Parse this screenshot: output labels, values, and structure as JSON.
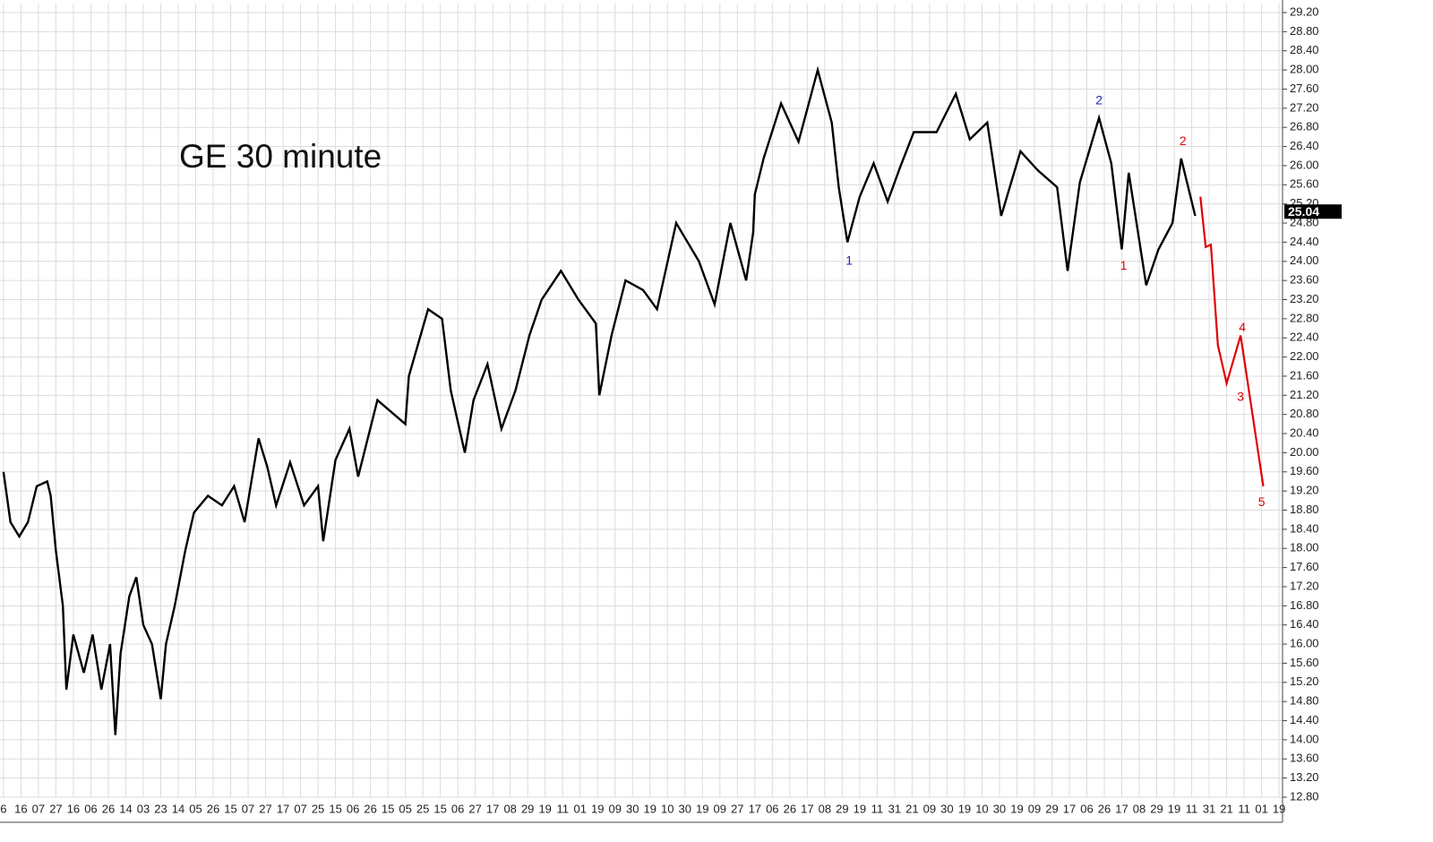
{
  "chart_data": {
    "type": "line",
    "title": "GE 30 minute",
    "categories": [
      "6",
      "16",
      "07",
      "27",
      "16",
      "06",
      "26",
      "14",
      "03",
      "23",
      "14",
      "05",
      "26",
      "15",
      "07",
      "27",
      "17",
      "07",
      "25",
      "15",
      "06",
      "26",
      "15",
      "05",
      "25",
      "15",
      "06",
      "27",
      "17",
      "08",
      "29",
      "19",
      "11",
      "01",
      "19",
      "09",
      "30",
      "19",
      "10",
      "30",
      "19",
      "09",
      "27",
      "17",
      "06",
      "26",
      "17",
      "08",
      "29",
      "19",
      "11",
      "31",
      "21",
      "09",
      "30",
      "19",
      "10",
      "30",
      "19",
      "09",
      "29",
      "17",
      "06",
      "26",
      "17",
      "08",
      "29",
      "19",
      "11",
      "31",
      "21",
      "11",
      "01",
      "19"
    ],
    "xlim": [
      -0.2,
      73.2
    ],
    "ylim": [
      12.8,
      29.2
    ],
    "yticks": [
      {
        "value": 12.8,
        "label": "12.80"
      },
      {
        "value": 13.2,
        "label": "13.20"
      },
      {
        "value": 13.6,
        "label": "13.60"
      },
      {
        "value": 14,
        "label": "14.00"
      },
      {
        "value": 14.4,
        "label": "14.40"
      },
      {
        "value": 14.8,
        "label": "14.80"
      },
      {
        "value": 15.2,
        "label": "15.20"
      },
      {
        "value": 15.6,
        "label": "15.60"
      },
      {
        "value": 16,
        "label": "16.00"
      },
      {
        "value": 16.4,
        "label": "16.40"
      },
      {
        "value": 16.8,
        "label": "16.80"
      },
      {
        "value": 17.2,
        "label": "17.20"
      },
      {
        "value": 17.6,
        "label": "17.60"
      },
      {
        "value": 18,
        "label": "18.00"
      },
      {
        "value": 18.4,
        "label": "18.40"
      },
      {
        "value": 18.8,
        "label": "18.80"
      },
      {
        "value": 19.2,
        "label": "19.20"
      },
      {
        "value": 19.6,
        "label": "19.60"
      },
      {
        "value": 20,
        "label": "20.00"
      },
      {
        "value": 20.4,
        "label": "20.40"
      },
      {
        "value": 20.8,
        "label": "20.80"
      },
      {
        "value": 21.2,
        "label": "21.20"
      },
      {
        "value": 21.6,
        "label": "21.60"
      },
      {
        "value": 22,
        "label": "22.00"
      },
      {
        "value": 22.4,
        "label": "22.40"
      },
      {
        "value": 22.8,
        "label": "22.80"
      },
      {
        "value": 23.2,
        "label": "23.20"
      },
      {
        "value": 23.6,
        "label": "23.60"
      },
      {
        "value": 24,
        "label": "24.00"
      },
      {
        "value": 24.4,
        "label": "24.40"
      },
      {
        "value": 24.8,
        "label": "24.80"
      },
      {
        "value": 25.2,
        "label": "25.20"
      },
      {
        "value": 25.6,
        "label": "25.60"
      },
      {
        "value": 26,
        "label": "26.00"
      },
      {
        "value": 26.4,
        "label": "26.40"
      },
      {
        "value": 26.8,
        "label": "26.80"
      },
      {
        "value": 27.2,
        "label": "27.20"
      },
      {
        "value": 27.6,
        "label": "27.60"
      },
      {
        "value": 28,
        "label": "28.00"
      },
      {
        "value": 28.4,
        "label": "28.40"
      },
      {
        "value": 28.8,
        "label": "28.80"
      },
      {
        "value": 29.2,
        "label": "29.20"
      }
    ],
    "grid": true,
    "series": [
      {
        "color": "#000000",
        "x": [
          0,
          0.4,
          0.9,
          1.4,
          1.9,
          2.5,
          2.7,
          3.0,
          3.4,
          3.6,
          4.0,
          4.6,
          5.1,
          5.6,
          6.1,
          6.4,
          6.7,
          7.2,
          7.6,
          8.0,
          8.5,
          9.0,
          9.3,
          9.8,
          10.4,
          10.9,
          11.7,
          12.5,
          13.2,
          13.8,
          14.6,
          15.1,
          15.6,
          16.4,
          17.2,
          18.0,
          18.3,
          19.0,
          19.8,
          20.3,
          21.4,
          23.0,
          23.2,
          24.3,
          25.1,
          25.6,
          26.4,
          26.9,
          27.7,
          28.5,
          29.3,
          30.1,
          30.8,
          31.9,
          32.9,
          33.9,
          34.1,
          34.8,
          35.6,
          36.6,
          37.4,
          38.5,
          39.8,
          40.7,
          41.6,
          42.5,
          42.9,
          43.0,
          43.5,
          44.5,
          45.5,
          46.6,
          47.4,
          47.8,
          48.3,
          49.0,
          49.8,
          50.6,
          51.3,
          52.1,
          53.4,
          54.5,
          55.3,
          56.3,
          57.1,
          58.2,
          59.2,
          60.3,
          60.9,
          61.6,
          62.7,
          63.4,
          64.0,
          64.4,
          65.4,
          66.1,
          66.9,
          67.4,
          68.2
        ],
        "values": [
          19.6,
          18.55,
          18.25,
          18.55,
          19.3,
          19.4,
          19.1,
          17.95,
          16.8,
          15.05,
          16.2,
          15.4,
          16.2,
          15.05,
          16.0,
          14.1,
          15.8,
          17.0,
          17.4,
          16.4,
          16.0,
          14.85,
          16.0,
          16.8,
          17.95,
          18.75,
          19.1,
          18.9,
          19.3,
          18.55,
          20.3,
          19.7,
          18.9,
          19.8,
          18.9,
          19.3,
          18.15,
          19.85,
          20.5,
          19.5,
          21.1,
          20.6,
          21.6,
          23.0,
          22.8,
          21.3,
          20.0,
          21.1,
          21.85,
          20.5,
          21.3,
          22.45,
          23.2,
          23.8,
          23.2,
          22.7,
          21.2,
          22.45,
          23.6,
          23.4,
          23.0,
          24.8,
          24.0,
          23.1,
          24.8,
          23.6,
          24.6,
          25.4,
          26.15,
          27.3,
          26.5,
          28.0,
          26.9,
          25.55,
          24.4,
          25.35,
          26.05,
          25.25,
          25.95,
          26.7,
          26.7,
          27.5,
          26.55,
          26.9,
          24.95,
          26.3,
          25.9,
          25.55,
          23.8,
          25.65,
          27.0,
          26.05,
          24.25,
          25.85,
          23.5,
          24.25,
          24.8,
          26.15,
          24.95
        ]
      },
      {
        "color": "#e00000",
        "x": [
          68.5,
          68.8,
          69.1,
          69.5,
          70.0,
          70.8,
          72.1
        ],
        "values": [
          25.35,
          24.3,
          24.35,
          22.25,
          21.45,
          22.45,
          19.3
        ]
      }
    ],
    "last_price": {
      "value": 25.04,
      "label": "25.04"
    },
    "annotations": [
      {
        "text": "1",
        "color": "#2020c0",
        "x": 48.4,
        "y": 24.0
      },
      {
        "text": "2",
        "color": "#2020c0",
        "x": 62.7,
        "y": 27.35
      },
      {
        "text": "1",
        "color": "#e00000",
        "x": 64.1,
        "y": 23.9
      },
      {
        "text": "2",
        "color": "#e00000",
        "x": 67.5,
        "y": 26.5
      },
      {
        "text": "3",
        "color": "#e00000",
        "x": 70.8,
        "y": 21.15
      },
      {
        "text": "4",
        "color": "#e00000",
        "x": 70.9,
        "y": 22.6
      },
      {
        "text": "5",
        "color": "#e00000",
        "x": 72.0,
        "y": 18.95
      }
    ]
  }
}
